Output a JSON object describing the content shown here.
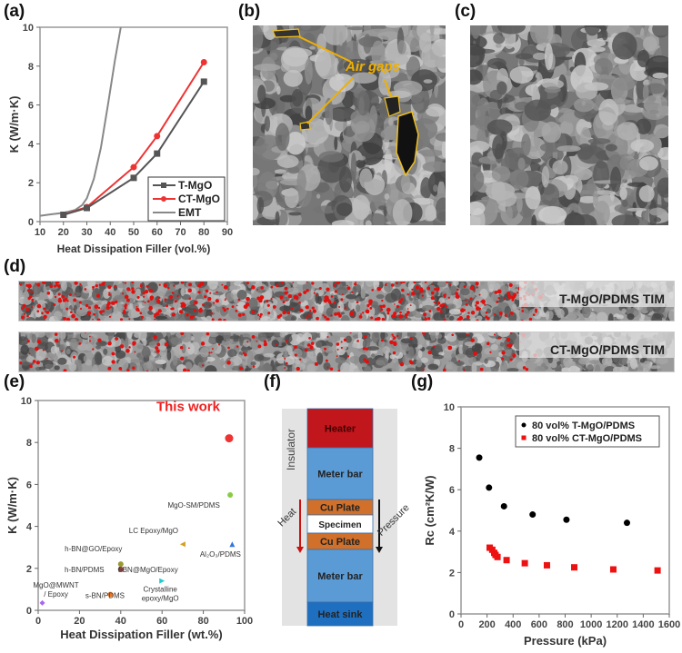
{
  "panel_labels": {
    "a": "(a)",
    "b": "(b)",
    "c": "(c)",
    "d": "(d)",
    "e": "(e)",
    "f": "(f)",
    "g": "(g)"
  },
  "chart_data": [
    {
      "id": "a",
      "type": "line",
      "xlabel": "Heat Dissipation Filler (vol.%)",
      "ylabel": "K (W/m·K)",
      "xlim": [
        10,
        90
      ],
      "ylim": [
        0,
        10
      ],
      "xticks": [
        10,
        20,
        30,
        40,
        50,
        60,
        70,
        80,
        90
      ],
      "yticks": [
        0,
        2,
        4,
        6,
        8,
        10
      ],
      "legend_position": "bottom-right",
      "series": [
        {
          "name": "T-MgO",
          "color": "#555555",
          "marker": "square",
          "x": [
            20,
            30,
            50,
            60,
            80
          ],
          "y": [
            0.35,
            0.7,
            2.25,
            3.5,
            7.2
          ]
        },
        {
          "name": "CT-MgO",
          "color": "#ee3333",
          "marker": "circle",
          "x": [
            20,
            30,
            50,
            60,
            80
          ],
          "y": [
            0.35,
            0.75,
            2.8,
            4.4,
            8.2
          ]
        },
        {
          "name": "EMT",
          "color": "#888888",
          "marker": "none",
          "x": [
            10,
            15,
            20,
            25,
            28,
            30,
            33,
            36,
            39,
            42,
            44.5
          ],
          "y": [
            0.3,
            0.38,
            0.45,
            0.6,
            0.85,
            1.2,
            2.2,
            3.8,
            6.0,
            8.3,
            10
          ]
        }
      ]
    },
    {
      "id": "e",
      "type": "scatter",
      "xlabel": "Heat Dissipation Filler (wt.%)",
      "ylabel": "K (W/m·K)",
      "xlim": [
        0,
        100
      ],
      "ylim": [
        0,
        10
      ],
      "xticks": [
        0,
        20,
        40,
        60,
        80,
        100
      ],
      "yticks": [
        0,
        2,
        4,
        6,
        8,
        10
      ],
      "points": [
        {
          "label": "This work",
          "x": 92.5,
          "y": 8.2,
          "color": "#ee3333",
          "marker": "circle"
        },
        {
          "label": "MgO-SM/PDMS",
          "x": 93,
          "y": 5.5,
          "color": "#88cc44",
          "marker": "circle"
        },
        {
          "label": "LC Epoxy/MgO",
          "x": 70,
          "y": 3.15,
          "color": "#d4a020",
          "marker": "triangle-left"
        },
        {
          "label": "Al₂O₃/PDMS",
          "x": 94,
          "y": 3.15,
          "color": "#3377dd",
          "marker": "triangle-up"
        },
        {
          "label": "h-BN@GO/Epoxy",
          "x": 40,
          "y": 2.2,
          "color": "#999933",
          "marker": "circle"
        },
        {
          "label": "h-BN/PDMS",
          "x": 40,
          "y": 1.95,
          "color": "#884444",
          "marker": "circle"
        },
        {
          "label": "f-BN@MgO/Epoxy",
          "x": 40,
          "y": 1.95,
          "color": "#884444",
          "marker": "circle"
        },
        {
          "label": "Crystalline epoxy/MgO",
          "x": 60,
          "y": 1.4,
          "color": "#22cccc",
          "marker": "triangle-right"
        },
        {
          "label": "s-BN/PDMS",
          "x": 35,
          "y": 0.75,
          "color": "#ee7722",
          "marker": "circle"
        },
        {
          "label": "MgO@MWNT / Epoxy",
          "x": 2,
          "y": 0.35,
          "color": "#aa66ee",
          "marker": "diamond"
        }
      ]
    },
    {
      "id": "g",
      "type": "scatter",
      "xlabel": "Pressure (kPa)",
      "ylabel": "Rc (cm²K/W)",
      "xlim": [
        0,
        1600
      ],
      "ylim": [
        0,
        10
      ],
      "xticks": [
        0,
        200,
        400,
        600,
        800,
        1000,
        1200,
        1400,
        1600
      ],
      "yticks": [
        0,
        2,
        4,
        6,
        8,
        10
      ],
      "legend_position": "top-right",
      "series": [
        {
          "name": "80 vol% T-MgO/PDMS",
          "color": "#000000",
          "marker": "circle",
          "x": [
            140,
            215,
            330,
            550,
            810,
            1275
          ],
          "y": [
            7.55,
            6.1,
            5.2,
            4.8,
            4.55,
            4.4
          ]
        },
        {
          "name": "80 vol% CT-MgO/PDMS",
          "color": "#ee1111",
          "marker": "square",
          "x": [
            220,
            240,
            255,
            265,
            280,
            350,
            490,
            660,
            870,
            1170,
            1510
          ],
          "y": [
            3.2,
            3.1,
            2.95,
            2.85,
            2.75,
            2.6,
            2.45,
            2.35,
            2.25,
            2.15,
            2.1
          ]
        }
      ]
    }
  ],
  "panel_b": {
    "annotation": "Air gaps"
  },
  "panel_d": {
    "strips": [
      {
        "label": "T-MgO/PDMS TIM",
        "red_density": 0.9
      },
      {
        "label": "CT-MgO/PDMS TIM",
        "red_density": 0.3
      }
    ]
  },
  "panel_f": {
    "insulator": "Insulator",
    "heat": "Heat",
    "pressure": "Pressure",
    "layers": [
      {
        "label": "Heater",
        "color": "#c0161c"
      },
      {
        "label": "Meter bar",
        "color": "#5b9bd5"
      },
      {
        "label": "Cu Plate",
        "color": "#d0702a"
      },
      {
        "label": "Specimen",
        "color": "#ffffff"
      },
      {
        "label": "Cu Plate",
        "color": "#d0702a"
      },
      {
        "label": "Meter bar",
        "color": "#5b9bd5"
      },
      {
        "label": "Heat sink",
        "color": "#1f6fc0"
      }
    ]
  }
}
